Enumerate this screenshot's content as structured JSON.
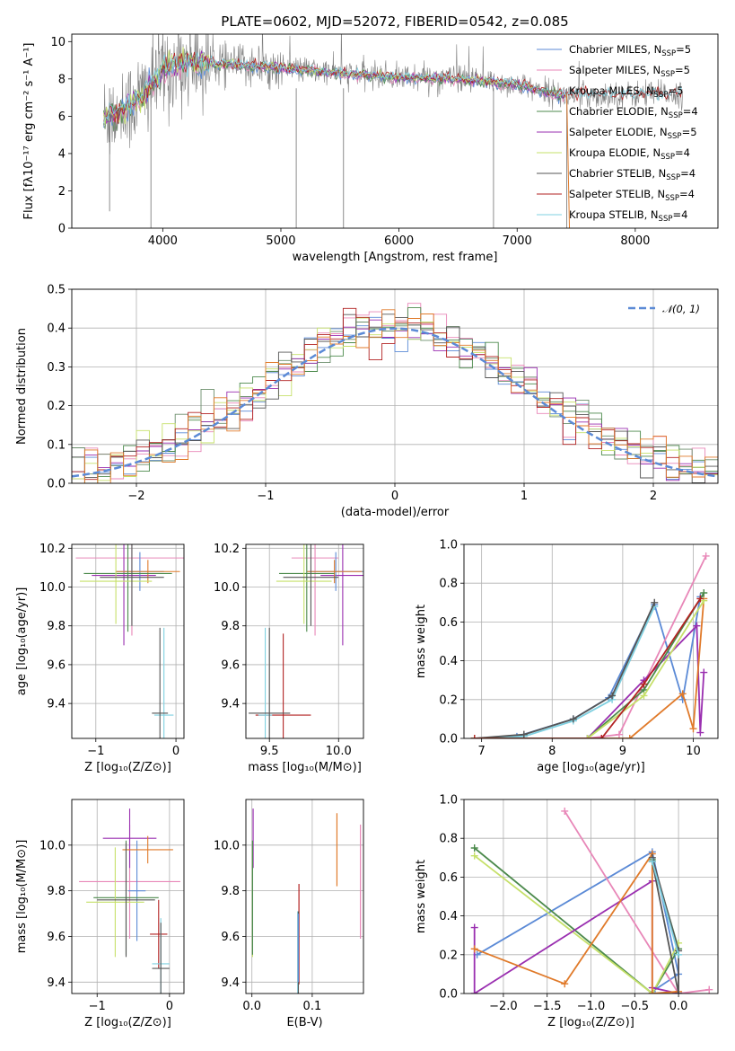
{
  "title": "PLATE=0602, MJD=52072, FIBERID=0542, z=0.085",
  "colors": {
    "Chabrier MILES": "#5b8ad6",
    "Salpeter MILES": "#e887b8",
    "Kroupa MILES": "#6b8e6b",
    "Chabrier ELODIE": "#4c8a4c",
    "Salpeter ELODIE": "#9a2fb0",
    "Kroupa ELODIE": "#c6e06a",
    "Chabrier STELIB": "#555555",
    "Salpeter STELIB": "#b22222",
    "Kroupa STELIB": "#7fd0e0",
    "Orange": "#e07a2a",
    "normal": "#5b8ad6",
    "data": "#808080"
  },
  "chart_data": [
    {
      "type": "line",
      "panel": "spectrum",
      "xlabel": "wavelength [Angstrom, rest frame]",
      "ylabel": "Flux [fλ10⁻¹⁷ erg cm⁻² s⁻¹ A⁻¹]",
      "xlim": [
        3230,
        8700
      ],
      "ylim": [
        0,
        10.4
      ],
      "xticks": [
        "4000",
        "5000",
        "6000",
        "7000",
        "8000"
      ],
      "yticks": [
        "0",
        "2",
        "4",
        "6",
        "8",
        "10"
      ],
      "grid": false,
      "legend": "top-right",
      "legend_entries": [
        {
          "name": "Chabrier MILES, N",
          "sub": "SSP",
          "suf": "=5",
          "color": "Chabrier MILES"
        },
        {
          "name": "Salpeter MILES, N",
          "sub": "SSP",
          "suf": "=5",
          "color": "Salpeter MILES"
        },
        {
          "name": "Kroupa MILES, N",
          "sub": "SSP",
          "suf": "=5",
          "color": "Kroupa MILES"
        },
        {
          "name": "Chabrier ELODIE, N",
          "sub": "SSP",
          "suf": "=4",
          "color": "Chabrier ELODIE"
        },
        {
          "name": "Salpeter ELODIE, N",
          "sub": "SSP",
          "suf": "=5",
          "color": "Salpeter ELODIE"
        },
        {
          "name": "Kroupa ELODIE, N",
          "sub": "SSP",
          "suf": "=4",
          "color": "Kroupa ELODIE"
        },
        {
          "name": "Chabrier STELIB, N",
          "sub": "SSP",
          "suf": "=4",
          "color": "Chabrier STELIB"
        },
        {
          "name": "Salpeter STELIB, N",
          "sub": "SSP",
          "suf": "=4",
          "color": "Salpeter STELIB"
        },
        {
          "name": "Kroupa STELIB, N",
          "sub": "SSP",
          "suf": "=4",
          "color": "Kroupa STELIB"
        }
      ],
      "continuum": {
        "x": [
          3500,
          3700,
          3900,
          4000,
          4200,
          4500,
          5000,
          5500,
          6000,
          6500,
          7000,
          7400
        ],
        "y": [
          5.9,
          6.4,
          7.6,
          8.5,
          8.9,
          8.8,
          8.6,
          8.3,
          8.1,
          8.0,
          7.7,
          7.1
        ]
      },
      "model_ranges": {
        "miles_elodie": [
          3500,
          7400
        ],
        "stelib": [
          3500,
          8400
        ]
      },
      "spikes": [
        {
          "x": 3550,
          "y": 0.9
        },
        {
          "x": 3900,
          "y": 0.0
        },
        {
          "x": 5130,
          "y": 0.0
        },
        {
          "x": 5530,
          "y": 0.0
        },
        {
          "x": 6800,
          "y": 0.0
        },
        {
          "x": 7420,
          "y": 0.0
        }
      ]
    },
    {
      "type": "step",
      "panel": "residuals",
      "xlabel": "(data-model)/error",
      "ylabel": "Normed distribution",
      "xlim": [
        -2.5,
        2.5
      ],
      "ylim": [
        0,
        0.5
      ],
      "xticks": [
        "−2",
        "−1",
        "0",
        "1",
        "2"
      ],
      "yticks": [
        "0.0",
        "0.1",
        "0.2",
        "0.3",
        "0.4",
        "0.5"
      ],
      "grid": true,
      "legend": "top-right",
      "legend_label": "𝒩(0, 1)",
      "bin_width": 0.1
    },
    {
      "type": "scatter",
      "panel": "age-Z",
      "xlabel": "Z [log₁₀(Z/Z⊙)]",
      "ylabel": "age  [log₁₀(age/yr)]",
      "xlim": [
        -1.3,
        0.1
      ],
      "ylim": [
        9.22,
        10.22
      ],
      "xticks": [
        "−1",
        "0"
      ],
      "yticks": [
        "9.4",
        "9.6",
        "9.8",
        "10.0",
        "10.2"
      ],
      "grid": true,
      "crosses": [
        {
          "c": "Salpeter MILES",
          "x": -0.55,
          "y": 10.15,
          "xe": 0.7,
          "ye": 0.4
        },
        {
          "c": "Salpeter ELODIE",
          "x": -0.65,
          "y": 10.06,
          "xe": 0.4,
          "ye": 0.36
        },
        {
          "c": "Chabrier MILES",
          "x": -0.45,
          "y": 10.08,
          "xe": 0.3,
          "ye": 0.1
        },
        {
          "c": "Orange",
          "x": -0.35,
          "y": 10.08,
          "xe": 0.4,
          "ye": 0.06
        },
        {
          "c": "Chabrier ELODIE",
          "x": -0.6,
          "y": 10.07,
          "xe": 0.55,
          "ye": 0.3
        },
        {
          "c": "Kroupa ELODIE",
          "x": -0.75,
          "y": 10.03,
          "xe": 0.45,
          "ye": 0.22
        },
        {
          "c": "Chabrier STELIB",
          "x": -0.55,
          "y": 10.05,
          "xe": 0.4,
          "ye": 0.25
        },
        {
          "c": "Kroupa STELIB",
          "x": -0.15,
          "y": 9.34,
          "xe": 0.12,
          "ye": 0.45
        },
        {
          "c": "Chabrier STELIB",
          "x": -0.2,
          "y": 9.35,
          "xe": 0.1,
          "ye": 0.44
        }
      ]
    },
    {
      "type": "scatter",
      "panel": "age-mass",
      "xlabel": "mass [log₁₀(M/M⊙)]",
      "ylabel": "",
      "xlim": [
        9.33,
        10.18
      ],
      "ylim": [
        9.22,
        10.22
      ],
      "xticks": [
        "9.5",
        "10.0"
      ],
      "yticks": [
        "9.4",
        "9.6",
        "9.8",
        "10.0",
        "10.2"
      ],
      "grid": true,
      "crosses": [
        {
          "c": "Salpeter MILES",
          "x": 9.83,
          "y": 10.15,
          "xe": 0.17,
          "ye": 0.4
        },
        {
          "c": "Salpeter ELODIE",
          "x": 10.03,
          "y": 10.06,
          "xe": 0.16,
          "ye": 0.36
        },
        {
          "c": "Chabrier MILES",
          "x": 9.98,
          "y": 10.08,
          "xe": 0.2,
          "ye": 0.1
        },
        {
          "c": "Orange",
          "x": 9.97,
          "y": 10.08,
          "xe": 0.2,
          "ye": 0.06
        },
        {
          "c": "Chabrier ELODIE",
          "x": 9.77,
          "y": 10.07,
          "xe": 0.2,
          "ye": 0.3
        },
        {
          "c": "Kroupa ELODIE",
          "x": 9.75,
          "y": 10.03,
          "xe": 0.2,
          "ye": 0.22
        },
        {
          "c": "Chabrier STELIB",
          "x": 9.8,
          "y": 10.05,
          "xe": 0.2,
          "ye": 0.25
        },
        {
          "c": "Salpeter STELIB",
          "x": 9.6,
          "y": 9.34,
          "xe": 0.2,
          "ye": 0.42
        },
        {
          "c": "Kroupa STELIB",
          "x": 9.47,
          "y": 9.34,
          "xe": 0.05,
          "ye": 0.45
        },
        {
          "c": "Chabrier STELIB",
          "x": 9.5,
          "y": 9.35,
          "xe": 0.15,
          "ye": 0.44
        }
      ]
    },
    {
      "type": "line",
      "panel": "massweight-age",
      "xlabel": "age  [log₁₀(age/yr)]",
      "ylabel": "mass weight",
      "xlim": [
        6.75,
        10.35
      ],
      "ylim": [
        0,
        1.0
      ],
      "xticks": [
        "7",
        "8",
        "9",
        "10"
      ],
      "yticks": [
        "0.0",
        "0.2",
        "0.4",
        "0.6",
        "0.8",
        "1.0"
      ],
      "grid": true,
      "series": [
        {
          "c": "Chabrier MILES",
          "x": [
            6.9,
            7.5,
            8.3,
            8.8,
            9.45,
            9.85,
            10.1
          ],
          "y": [
            0.0,
            0.01,
            0.1,
            0.21,
            0.69,
            0.2,
            0.73
          ]
        },
        {
          "c": "Kroupa STELIB",
          "x": [
            6.9,
            7.6,
            8.3,
            8.85,
            9.45
          ],
          "y": [
            0.0,
            0.01,
            0.09,
            0.2,
            0.68
          ]
        },
        {
          "c": "Chabrier STELIB",
          "x": [
            6.9,
            7.6,
            8.3,
            8.85,
            9.45
          ],
          "y": [
            0.0,
            0.02,
            0.1,
            0.22,
            0.7
          ]
        },
        {
          "c": "Salpeter MILES",
          "x": [
            6.9,
            8.5,
            8.95,
            10.18
          ],
          "y": [
            0.0,
            0.0,
            0.02,
            0.94
          ]
        },
        {
          "c": "Salpeter ELODIE",
          "x": [
            6.9,
            8.5,
            9.3,
            10.05,
            10.1,
            10.15
          ],
          "y": [
            0.0,
            0.0,
            0.3,
            0.58,
            0.03,
            0.34
          ]
        },
        {
          "c": "Orange",
          "x": [
            6.9,
            9.1,
            9.85,
            10.0,
            10.15
          ],
          "y": [
            0.0,
            0.0,
            0.23,
            0.05,
            0.72
          ]
        },
        {
          "c": "Chabrier ELODIE",
          "x": [
            6.9,
            8.5,
            9.3,
            10.15
          ],
          "y": [
            0.0,
            0.0,
            0.25,
            0.75
          ]
        },
        {
          "c": "Kroupa ELODIE",
          "x": [
            6.9,
            8.5,
            9.3,
            10.15
          ],
          "y": [
            0.0,
            0.0,
            0.22,
            0.71
          ]
        },
        {
          "c": "Salpeter STELIB",
          "x": [
            6.9,
            8.7,
            9.3,
            10.1
          ],
          "y": [
            0.0,
            0.0,
            0.28,
            0.72
          ]
        }
      ]
    },
    {
      "type": "scatter",
      "panel": "mass-Z",
      "xlabel": "Z [log₁₀(Z/Z⊙)]",
      "ylabel": "mass [log₁₀(M/M⊙)]",
      "xlim": [
        -1.35,
        0.2
      ],
      "ylim": [
        9.35,
        10.2
      ],
      "xticks": [
        "−1",
        "0"
      ],
      "yticks": [
        "9.4",
        "9.6",
        "9.8",
        "10.0"
      ],
      "grid": true,
      "crosses": [
        {
          "c": "Salpeter MILES",
          "x": -0.55,
          "y": 9.84,
          "xe": 0.7,
          "ye": 0.25
        },
        {
          "c": "Salpeter ELODIE",
          "x": -0.55,
          "y": 10.03,
          "xe": 0.37,
          "ye": 0.13
        },
        {
          "c": "Chabrier MILES",
          "x": -0.45,
          "y": 9.8,
          "xe": 0.12,
          "ye": 0.22
        },
        {
          "c": "Orange",
          "x": -0.3,
          "y": 9.98,
          "xe": 0.35,
          "ye": 0.06
        },
        {
          "c": "Chabrier ELODIE",
          "x": -0.6,
          "y": 9.77,
          "xe": 0.45,
          "ye": 0.25
        },
        {
          "c": "Kroupa ELODIE",
          "x": -0.75,
          "y": 9.75,
          "xe": 0.4,
          "ye": 0.24
        },
        {
          "c": "Chabrier STELIB",
          "x": -0.6,
          "y": 9.76,
          "xe": 0.4,
          "ye": 0.25
        },
        {
          "c": "Salpeter STELIB",
          "x": -0.15,
          "y": 9.61,
          "xe": 0.12,
          "ye": 0.15
        },
        {
          "c": "Kroupa STELIB",
          "x": -0.12,
          "y": 9.48,
          "xe": 0.12,
          "ye": 0.2
        },
        {
          "c": "Chabrier STELIB",
          "x": -0.12,
          "y": 9.46,
          "xe": 0.12,
          "ye": 0.2
        }
      ]
    },
    {
      "type": "scatter",
      "panel": "mass-EBV",
      "xlabel": "E(B-V)",
      "ylabel": "",
      "xlim": [
        -0.01,
        0.185
      ],
      "ylim": [
        9.35,
        10.2
      ],
      "xticks": [
        "0.0",
        "0.1"
      ],
      "yticks": [
        "9.4",
        "9.6",
        "9.8",
        "10.0"
      ],
      "grid": true,
      "bars": [
        {
          "c": "Salpeter ELODIE",
          "x": 0.002,
          "y": 10.03,
          "ye": 0.13
        },
        {
          "c": "Kroupa ELODIE",
          "x": 0.001,
          "y": 9.75,
          "ye": 0.24
        },
        {
          "c": "Chabrier ELODIE",
          "x": 0.001,
          "y": 9.77,
          "ye": 0.25
        },
        {
          "c": "Salpeter STELIB",
          "x": 0.078,
          "y": 9.61,
          "ye": 0.22
        },
        {
          "c": "Kroupa STELIB",
          "x": 0.076,
          "y": 9.48,
          "ye": 0.23
        },
        {
          "c": "Chabrier STELIB",
          "x": 0.077,
          "y": 9.46,
          "ye": 0.25
        },
        {
          "c": "Chabrier MILES",
          "x": 0.077,
          "y": 9.55,
          "ye": 0.15
        },
        {
          "c": "Orange",
          "x": 0.141,
          "y": 9.98,
          "ye": 0.16
        },
        {
          "c": "Salpeter MILES",
          "x": 0.18,
          "y": 9.84,
          "ye": 0.25
        }
      ]
    },
    {
      "type": "line",
      "panel": "massweight-Z",
      "xlabel": "Z [log₁₀(Z/Z⊙)]",
      "ylabel": "mass weight",
      "xlim": [
        -2.45,
        0.45
      ],
      "ylim": [
        0,
        1.0
      ],
      "xticks": [
        "−2.0",
        "−1.5",
        "−1.0",
        "−0.5",
        "0.0"
      ],
      "yticks": [
        "0.0",
        "0.2",
        "0.4",
        "0.6",
        "0.8",
        "1.0"
      ],
      "grid": true,
      "series": [
        {
          "c": "Chabrier MILES",
          "x": [
            -2.3,
            -0.3,
            0.0,
            -0.3
          ],
          "y": [
            0.2,
            0.73,
            0.1,
            0.01
          ]
        },
        {
          "c": "Salpeter MILES",
          "x": [
            -1.3,
            0.0,
            0.35
          ],
          "y": [
            0.94,
            0.0,
            0.02
          ]
        },
        {
          "c": "Chabrier ELODIE",
          "x": [
            -2.33,
            -0.3,
            0.0,
            -0.3
          ],
          "y": [
            0.75,
            0.0,
            0.23,
            0.69
          ]
        },
        {
          "c": "Kroupa ELODIE",
          "x": [
            -2.33,
            -0.3,
            0.0
          ],
          "y": [
            0.71,
            0.0,
            0.26
          ]
        },
        {
          "c": "Salpeter ELODIE",
          "x": [
            -2.33,
            -2.33,
            -0.3,
            -0.3,
            0.0
          ],
          "y": [
            0.34,
            0.0,
            0.58,
            0.03,
            0.0
          ]
        },
        {
          "c": "Orange",
          "x": [
            -2.33,
            -1.3,
            -0.3,
            -0.3,
            0.0
          ],
          "y": [
            0.23,
            0.05,
            0.72,
            0.0,
            0.01
          ]
        },
        {
          "c": "Chabrier STELIB",
          "x": [
            -0.3,
            0.0,
            0.0,
            -0.3
          ],
          "y": [
            0.7,
            0.22,
            0.0,
            0.68
          ]
        },
        {
          "c": "Kroupa STELIB",
          "x": [
            -0.3,
            0.0
          ],
          "y": [
            0.68,
            0.2
          ]
        }
      ]
    }
  ]
}
